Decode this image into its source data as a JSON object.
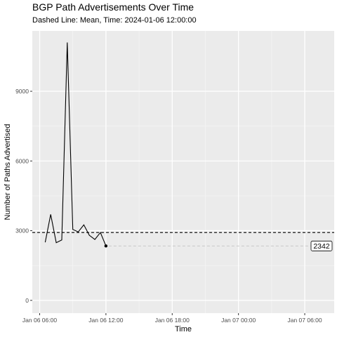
{
  "chart_data": {
    "type": "line",
    "title": "BGP Path Advertisements Over Time",
    "subtitle": "Dashed Line: Mean, Time: 2024-01-06 12:00:00",
    "xlabel": "Time",
    "ylabel": "Number of Paths Advertised",
    "x_ticks": [
      "Jan 06 06:00",
      "Jan 06 12:00",
      "Jan 06 18:00",
      "Jan 07 00:00",
      "Jan 07 06:00"
    ],
    "y_ticks": [
      "0",
      "3000",
      "6000",
      "9000"
    ],
    "y_tick_values": [
      0,
      3000,
      6000,
      9000
    ],
    "xlim": [
      "2024-01-06 05:20",
      "2024-01-07 08:40"
    ],
    "ylim": [
      -550,
      11600
    ],
    "grid": true,
    "series": [
      {
        "x": [
          "2024-01-06 06:30",
          "2024-01-06 07:00",
          "2024-01-06 07:30",
          "2024-01-06 08:00",
          "2024-01-06 08:30",
          "2024-01-06 09:00",
          "2024-01-06 09:30",
          "2024-01-06 10:00",
          "2024-01-06 10:30",
          "2024-01-06 11:00",
          "2024-01-06 11:30",
          "2024-01-06 12:00"
        ],
        "y": [
          2500,
          3700,
          2480,
          2600,
          11100,
          3050,
          2950,
          3250,
          2800,
          2620,
          2920,
          2342
        ],
        "color": "#000000"
      }
    ],
    "mean": 2920,
    "mean_style": "dashed",
    "last_point": {
      "x": "2024-01-06 12:00",
      "y": 2342
    },
    "last_label": "2342",
    "projection_color": "#c8c8c8"
  }
}
